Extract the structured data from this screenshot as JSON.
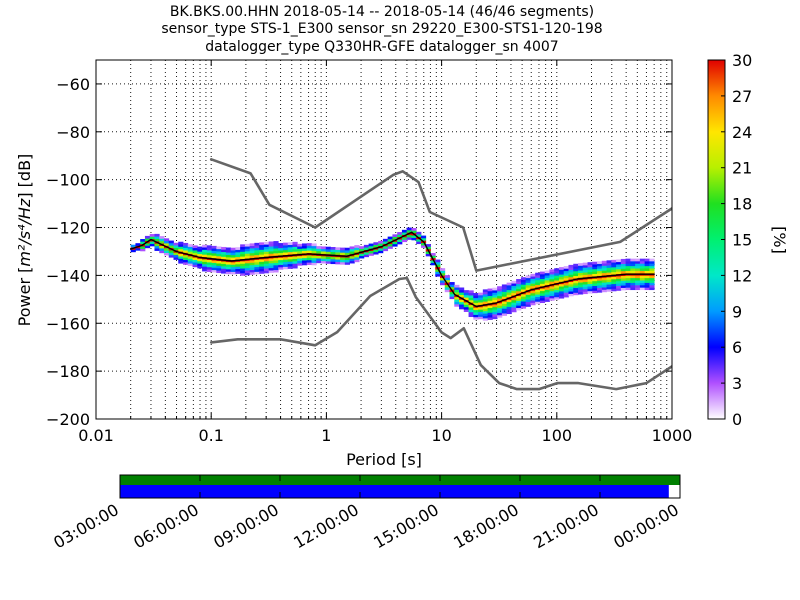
{
  "chart_data": {
    "type": "heatmap",
    "title_lines": [
      "BK.BKS.00.HHN   2018-05-14 -- 2018-05-14  (46/46 segments)",
      "sensor_type STS-1_E300 sensor_sn 29220_E300-STS1-120-198",
      "datalogger_type Q330HR-GFE datalogger_sn 4007"
    ],
    "xlabel": "Period [s]",
    "ylabel_prefix": "Power [",
    "ylabel_math": "m²/s⁴/Hz",
    "ylabel_suffix": "] [dB]",
    "x_scale": "log",
    "xlim": [
      0.01,
      1000
    ],
    "ylim": [
      -200,
      -50
    ],
    "x_ticks": [
      0.01,
      0.1,
      1,
      10,
      100,
      1000
    ],
    "x_tick_labels": [
      "0.01",
      "0.1",
      "1",
      "10",
      "100",
      "1000"
    ],
    "y_ticks": [
      -200,
      -180,
      -160,
      -140,
      -120,
      -100,
      -80,
      -60
    ],
    "y_tick_labels": [
      "−200",
      "−180",
      "−160",
      "−140",
      "−120",
      "−100",
      "−80",
      "−60"
    ],
    "grid": "dotted",
    "colorbar": {
      "label": "[%]",
      "range": [
        0,
        30
      ],
      "ticks": [
        0,
        3,
        6,
        9,
        12,
        15,
        18,
        21,
        24,
        27,
        30
      ],
      "tick_labels": [
        "0",
        "3",
        "6",
        "9",
        "12",
        "15",
        "18",
        "21",
        "24",
        "27",
        "30"
      ]
    },
    "series": [
      {
        "role": "noise-model-upper",
        "color": "#666666",
        "points": [
          [
            0.1,
            -91.5
          ],
          [
            0.22,
            -97.4
          ],
          [
            0.32,
            -110.5
          ],
          [
            0.8,
            -120.0
          ],
          [
            3.8,
            -98.0
          ],
          [
            4.6,
            -96.5
          ],
          [
            6.3,
            -101.0
          ],
          [
            7.9,
            -113.5
          ],
          [
            15.4,
            -120.0
          ],
          [
            20.0,
            -138.0
          ],
          [
            354.8,
            -126.0
          ],
          [
            1000,
            -112.0
          ]
        ]
      },
      {
        "role": "noise-model-lower",
        "color": "#666666",
        "points": [
          [
            0.1,
            -168.0
          ],
          [
            0.17,
            -166.7
          ],
          [
            0.4,
            -166.7
          ],
          [
            0.8,
            -169.2
          ],
          [
            1.24,
            -163.7
          ],
          [
            2.4,
            -148.6
          ],
          [
            4.3,
            -141.5
          ],
          [
            5.0,
            -141.1
          ],
          [
            6.0,
            -149.2
          ],
          [
            10.0,
            -163.8
          ],
          [
            12.0,
            -166.2
          ],
          [
            15.6,
            -162.1
          ],
          [
            21.9,
            -177.5
          ],
          [
            31.6,
            -185.0
          ],
          [
            45.0,
            -187.5
          ],
          [
            70.0,
            -187.5
          ],
          [
            101.0,
            -185.0
          ],
          [
            154.0,
            -185.0
          ],
          [
            328.0,
            -187.5
          ],
          [
            600.0,
            -185.0
          ],
          [
            1000,
            -178.0
          ]
        ]
      },
      {
        "role": "mean",
        "color": "#000000",
        "points": [
          [
            0.02,
            -129.0
          ],
          [
            0.025,
            -127.5
          ],
          [
            0.03,
            -125.0
          ],
          [
            0.05,
            -130.0
          ],
          [
            0.08,
            -132.5
          ],
          [
            0.15,
            -134.0
          ],
          [
            0.3,
            -132.5
          ],
          [
            0.7,
            -131.0
          ],
          [
            1.5,
            -132.0
          ],
          [
            3.0,
            -128.0
          ],
          [
            5.5,
            -122.0
          ],
          [
            7.0,
            -126.0
          ],
          [
            10.0,
            -140.0
          ],
          [
            13.0,
            -148.0
          ],
          [
            20.0,
            -153.0
          ],
          [
            30.0,
            -151.5
          ],
          [
            60.0,
            -146.0
          ],
          [
            150.0,
            -141.5
          ],
          [
            400.0,
            -139.5
          ],
          [
            700.0,
            -139.5
          ]
        ]
      }
    ],
    "density_band": {
      "core": [
        [
          0.02,
          -129.0
        ],
        [
          0.025,
          -127.5
        ],
        [
          0.03,
          -125.0
        ],
        [
          0.05,
          -130.0
        ],
        [
          0.08,
          -132.5
        ],
        [
          0.15,
          -134.0
        ],
        [
          0.3,
          -132.5
        ],
        [
          0.7,
          -131.0
        ],
        [
          1.5,
          -132.0
        ],
        [
          3.0,
          -128.0
        ],
        [
          5.5,
          -122.0
        ],
        [
          7.0,
          -126.0
        ],
        [
          10.0,
          -140.0
        ],
        [
          13.0,
          -148.0
        ],
        [
          20.0,
          -153.0
        ],
        [
          30.0,
          -151.5
        ],
        [
          60.0,
          -146.0
        ],
        [
          150.0,
          -141.5
        ],
        [
          400.0,
          -139.5
        ],
        [
          700.0,
          -139.5
        ]
      ],
      "half_width_db": [
        [
          0.02,
          1.0
        ],
        [
          0.04,
          3.0
        ],
        [
          0.1,
          5.0
        ],
        [
          0.3,
          6.0
        ],
        [
          0.8,
          3.5
        ],
        [
          2.0,
          2.5
        ],
        [
          5.0,
          2.0
        ],
        [
          9.0,
          2.5
        ],
        [
          15.0,
          4.0
        ],
        [
          25.0,
          6.0
        ],
        [
          60.0,
          6.0
        ],
        [
          200.0,
          5.5
        ],
        [
          700.0,
          6.5
        ]
      ]
    },
    "timeline": {
      "tick_labels": [
        "03:00:00",
        "06:00:00",
        "09:00:00",
        "12:00:00",
        "15:00:00",
        "18:00:00",
        "21:00:00",
        "00:00:00"
      ],
      "data_coverage": 1.0,
      "psd_coverage": 0.98,
      "data_color": "#008000",
      "psd_color": "#0000ff"
    }
  }
}
